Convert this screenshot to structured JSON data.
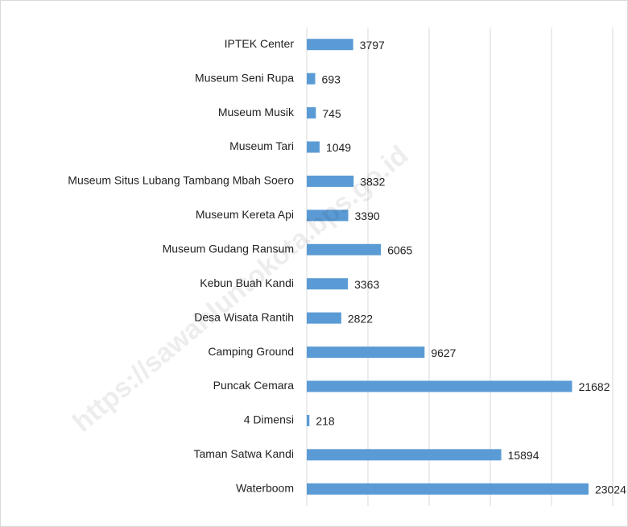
{
  "chart_data": {
    "type": "bar",
    "orientation": "horizontal",
    "categories": [
      "IPTEK Center",
      "Museum Seni Rupa",
      "Museum Musik",
      "Museum Tari",
      "Museum Situs Lubang Tambang Mbah Soero",
      "Museum Kereta Api",
      "Museum Gudang Ransum",
      "Kebun Buah Kandi",
      "Desa Wisata Rantih",
      "Camping Ground",
      "Puncak Cemara",
      "4 Dimensi",
      "Taman Satwa Kandi",
      "Waterboom"
    ],
    "values": [
      3797,
      693,
      745,
      1049,
      3832,
      3390,
      6065,
      3363,
      2822,
      9627,
      21682,
      218,
      15894,
      23024
    ],
    "color": "#5b9bd5",
    "xlim": [
      0,
      25000
    ],
    "xticks": [
      0,
      5000,
      10000,
      15000,
      20000,
      25000
    ],
    "grid": true,
    "watermark": "https://sawahluntokota.bps.go.id"
  }
}
